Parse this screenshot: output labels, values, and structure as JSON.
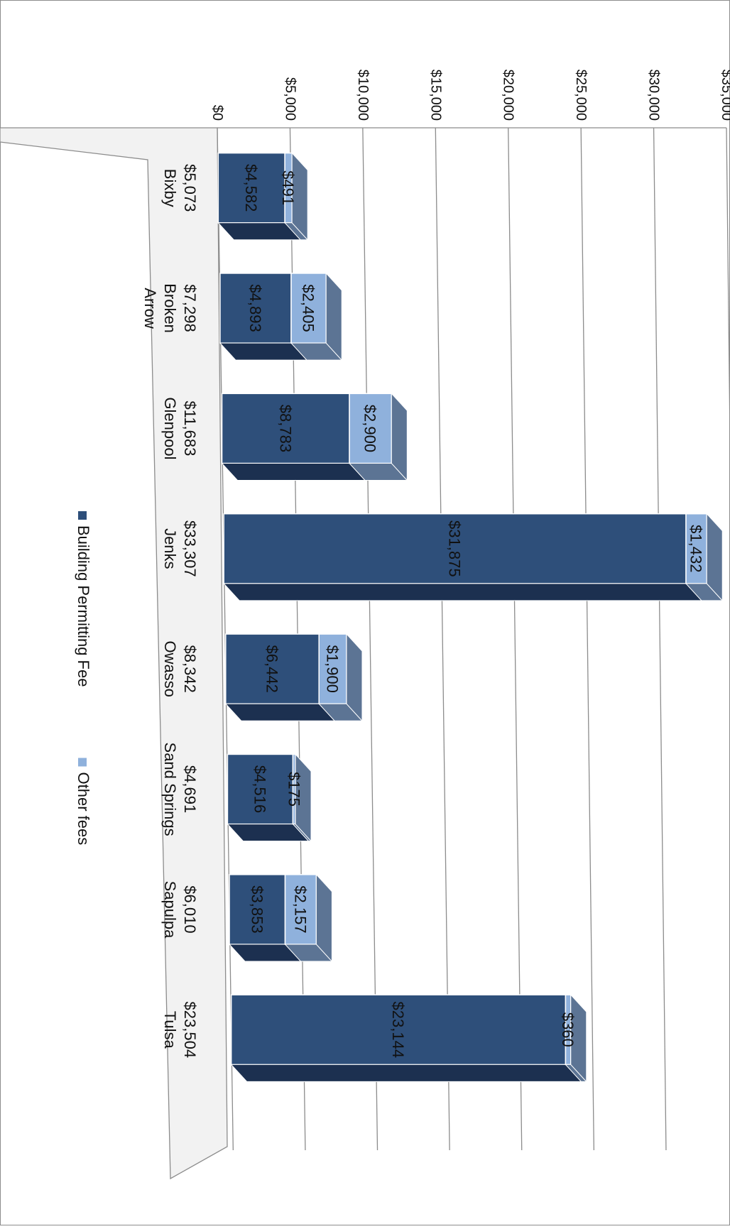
{
  "chart_data": {
    "type": "bar",
    "stacked": true,
    "orientation": "rotated-90-clockwise",
    "title": "",
    "categories": [
      "Bixby",
      "Broken Arrow",
      "Glenpool",
      "Jenks",
      "Owasso",
      "Sand Springs",
      "Sapulpa",
      "Tulsa"
    ],
    "category_lines": [
      [
        "Bixby"
      ],
      [
        "Broken",
        "Arrow"
      ],
      [
        "Glenpool"
      ],
      [
        "Jenks"
      ],
      [
        "Owasso"
      ],
      [
        "Sand Springs"
      ],
      [
        "Sapulpa"
      ],
      [
        "Tulsa"
      ]
    ],
    "totals": [
      "$5,073",
      "$7,298",
      "$11,683",
      "$33,307",
      "$8,342",
      "$4,691",
      "$6,010",
      "$23,504"
    ],
    "series": [
      {
        "name": "Building Permitting Fee",
        "color": "#2e4f7a",
        "values": [
          4582,
          4893,
          8783,
          31875,
          6442,
          4516,
          3853,
          23144
        ],
        "labels": [
          "$4,582",
          "$4,893",
          "$8,783",
          "$31,875",
          "$6,442",
          "$4,516",
          "$3,853",
          "$23,144"
        ]
      },
      {
        "name": "Other fees",
        "color": "#8fb1dc",
        "values": [
          491,
          2405,
          2900,
          1432,
          1900,
          175,
          2157,
          360
        ],
        "labels": [
          "$491",
          "$2,405",
          "$2,900",
          "$1,432",
          "$1,900",
          "$175",
          "$2,157",
          "$360"
        ]
      }
    ],
    "ylim": [
      0,
      35000
    ],
    "yticks": [
      0,
      5000,
      10000,
      15000,
      20000,
      25000,
      30000,
      35000
    ],
    "ytick_labels": [
      "$0",
      "$5,000",
      "$10,000",
      "$15,000",
      "$20,000",
      "$25,000",
      "$30,000",
      "$35,000"
    ],
    "grid": true,
    "legend_position": "bottom",
    "style": "3d"
  }
}
